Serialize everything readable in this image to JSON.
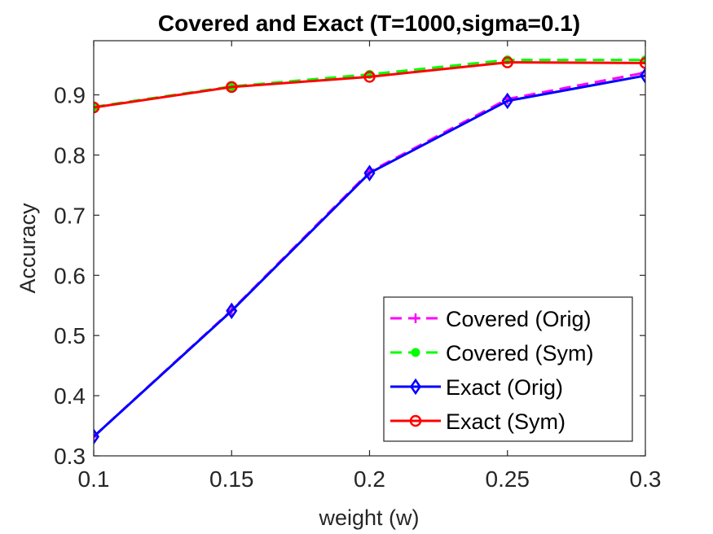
{
  "chart_data": {
    "type": "line",
    "title": "Covered and Exact (T=1000,sigma=0.1)",
    "xlabel": "weight (w)",
    "ylabel": "Accuracy",
    "xlim": [
      0.1,
      0.3
    ],
    "ylim": [
      0.3,
      0.99
    ],
    "xticks": [
      0.1,
      0.15,
      0.2,
      0.25,
      0.3
    ],
    "xtick_labels": [
      "0.1",
      "0.15",
      "0.2",
      "0.25",
      "0.3"
    ],
    "yticks": [
      0.3,
      0.4,
      0.5,
      0.6,
      0.7,
      0.8,
      0.9
    ],
    "ytick_labels": [
      "0.3",
      "0.4",
      "0.5",
      "0.6",
      "0.7",
      "0.8",
      "0.9"
    ],
    "grid": false,
    "legend_position": "bottom-right",
    "x": [
      0.1,
      0.15,
      0.2,
      0.25,
      0.3
    ],
    "series": [
      {
        "name": "Covered (Orig)",
        "values": [
          0.332,
          0.542,
          0.772,
          0.893,
          0.937
        ],
        "color": "#ff00ff",
        "line_style": "dashed",
        "marker": "plus"
      },
      {
        "name": "Covered (Sym)",
        "values": [
          0.88,
          0.914,
          0.934,
          0.958,
          0.958
        ],
        "color": "#00ff00",
        "line_style": "dashed",
        "marker": "dot"
      },
      {
        "name": "Exact (Orig)",
        "values": [
          0.332,
          0.541,
          0.77,
          0.89,
          0.932
        ],
        "color": "#0000ff",
        "line_style": "solid",
        "marker": "diamond"
      },
      {
        "name": "Exact (Sym)",
        "values": [
          0.879,
          0.913,
          0.93,
          0.954,
          0.953
        ],
        "color": "#ff0000",
        "line_style": "solid",
        "marker": "circle"
      }
    ]
  }
}
